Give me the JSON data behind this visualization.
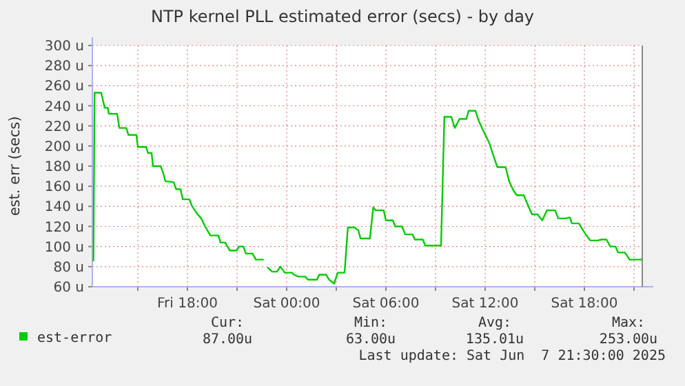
{
  "chart_data": {
    "type": "line",
    "title": "NTP kernel PLL estimated error (secs) - by day",
    "ylabel": "est. err (secs)",
    "xlim": [
      "2025-06-06T12:15",
      "2025-06-07T21:30"
    ],
    "ylim": [
      60,
      300
    ],
    "xticks": [
      {
        "value": "2025-06-06T15:00",
        "label": null
      },
      {
        "value": "2025-06-06T18:00",
        "label": "Fri 18:00"
      },
      {
        "value": "2025-06-06T21:00",
        "label": null
      },
      {
        "value": "2025-06-07T00:00",
        "label": "Sat 00:00"
      },
      {
        "value": "2025-06-07T03:00",
        "label": null
      },
      {
        "value": "2025-06-07T06:00",
        "label": "Sat 06:00"
      },
      {
        "value": "2025-06-07T09:00",
        "label": null
      },
      {
        "value": "2025-06-07T12:00",
        "label": "Sat 12:00"
      },
      {
        "value": "2025-06-07T15:00",
        "label": null
      },
      {
        "value": "2025-06-07T18:00",
        "label": "Sat 18:00"
      },
      {
        "value": "2025-06-07T21:00",
        "label": null
      }
    ],
    "yticks": [
      {
        "value": 60,
        "label": "60 u"
      },
      {
        "value": 80,
        "label": "80 u"
      },
      {
        "value": 100,
        "label": "100 u"
      },
      {
        "value": 120,
        "label": "120 u"
      },
      {
        "value": 140,
        "label": "140 u"
      },
      {
        "value": 160,
        "label": "160 u"
      },
      {
        "value": 180,
        "label": "180 u"
      },
      {
        "value": 200,
        "label": "200 u"
      },
      {
        "value": 220,
        "label": "220 u"
      },
      {
        "value": 240,
        "label": "240 u"
      },
      {
        "value": 260,
        "label": "260 u"
      },
      {
        "value": 280,
        "label": "280 u"
      },
      {
        "value": 300,
        "label": "300 u"
      }
    ],
    "grid": true,
    "legend": "bottom left",
    "series": [
      {
        "name": "est-error",
        "color": "#00cc00",
        "x": [
          "2025-06-06T12:19",
          "2025-06-06T12:23",
          "2025-06-06T12:47",
          "2025-06-06T13:00",
          "2025-06-06T13:11",
          "2025-06-06T13:15",
          "2025-06-06T13:45",
          "2025-06-06T13:53",
          "2025-06-06T14:18",
          "2025-06-06T14:26",
          "2025-06-06T14:55",
          "2025-06-06T15:00",
          "2025-06-06T15:30",
          "2025-06-06T15:37",
          "2025-06-06T15:50",
          "2025-06-06T15:55",
          "2025-06-06T16:23",
          "2025-06-06T16:32",
          "2025-06-06T16:40",
          "2025-06-06T17:10",
          "2025-06-06T17:19",
          "2025-06-06T17:35",
          "2025-06-06T17:43",
          "2025-06-06T18:07",
          "2025-06-06T18:17",
          "2025-06-06T18:34",
          "2025-06-06T18:50",
          "2025-06-06T19:04",
          "2025-06-06T19:23",
          "2025-06-06T19:52",
          "2025-06-06T20:00",
          "2025-06-06T20:17",
          "2025-06-06T20:25",
          "2025-06-06T20:34",
          "2025-06-06T20:58",
          "2025-06-06T21:07",
          "2025-06-06T21:23",
          "2025-06-06T21:32",
          "2025-06-06T21:56",
          "2025-06-06T22:08",
          "2025-06-06T22:34",
          "2025-06-06T22:48",
          "2025-06-06T22:52",
          "2025-06-06T23:07",
          "2025-06-06T23:25",
          "2025-06-06T23:37",
          "2025-06-06T23:53",
          "2025-06-07T00:19",
          "2025-06-07T00:26",
          "2025-06-07T00:43",
          "2025-06-07T01:08",
          "2025-06-07T01:17",
          "2025-06-07T01:50",
          "2025-06-07T01:58",
          "2025-06-07T02:23",
          "2025-06-07T02:34",
          "2025-06-07T02:52",
          "2025-06-07T03:05",
          "2025-06-07T03:30",
          "2025-06-07T03:42",
          "2025-06-07T04:07",
          "2025-06-07T04:20",
          "2025-06-07T04:28",
          "2025-06-07T05:02",
          "2025-06-07T05:14",
          "2025-06-07T05:23",
          "2025-06-07T05:52",
          "2025-06-07T06:00",
          "2025-06-07T06:25",
          "2025-06-07T06:34",
          "2025-06-07T06:58",
          "2025-06-07T07:10",
          "2025-06-07T07:37",
          "2025-06-07T07:45",
          "2025-06-07T08:14",
          "2025-06-07T08:22",
          "2025-06-07T09:20",
          "2025-06-07T09:32",
          "2025-06-07T09:57",
          "2025-06-07T10:10",
          "2025-06-07T10:27",
          "2025-06-07T10:52",
          "2025-06-07T11:00",
          "2025-06-07T11:25",
          "2025-06-07T11:37",
          "2025-06-07T11:50",
          "2025-06-07T12:15",
          "2025-06-07T12:27",
          "2025-06-07T12:44",
          "2025-06-07T13:14",
          "2025-06-07T13:27",
          "2025-06-07T13:42",
          "2025-06-07T13:55",
          "2025-06-07T14:20",
          "2025-06-07T14:34",
          "2025-06-07T14:50",
          "2025-06-07T15:10",
          "2025-06-07T15:27",
          "2025-06-07T15:44",
          "2025-06-07T16:14",
          "2025-06-07T16:25",
          "2025-06-07T16:50",
          "2025-06-07T17:07",
          "2025-06-07T17:15",
          "2025-06-07T17:40",
          "2025-06-07T17:53",
          "2025-06-07T18:05",
          "2025-06-07T18:22",
          "2025-06-07T18:47",
          "2025-06-07T19:04",
          "2025-06-07T19:20",
          "2025-06-07T19:34",
          "2025-06-07T19:53",
          "2025-06-07T20:02",
          "2025-06-07T20:27",
          "2025-06-07T20:44",
          "2025-06-07T21:30"
        ],
        "values": [
          86,
          253,
          253,
          238,
          238,
          232,
          232,
          218,
          218,
          211,
          211,
          199,
          199,
          193,
          193,
          180,
          180,
          173,
          165,
          164,
          157,
          157,
          147,
          147,
          140,
          133,
          128,
          120,
          111,
          111,
          104,
          104,
          100,
          96,
          96,
          100,
          100,
          93,
          93,
          87,
          87,
          null,
          79,
          75,
          75,
          80,
          74,
          74,
          72,
          70,
          70,
          67,
          67,
          72,
          72,
          67,
          63,
          74,
          74,
          119,
          119,
          116,
          108,
          108,
          139,
          136,
          136,
          126,
          126,
          120,
          120,
          112,
          112,
          107,
          107,
          101,
          101,
          229,
          229,
          218,
          227,
          227,
          235,
          235,
          225,
          217,
          203,
          193,
          179,
          179,
          165,
          156,
          151,
          151,
          142,
          132,
          132,
          126,
          136,
          136,
          128,
          128,
          129,
          123,
          123,
          117,
          112,
          106,
          106,
          107,
          107,
          100,
          100,
          94,
          94,
          87,
          87
        ]
      }
    ],
    "annotations": [
      "Cur:",
      "87.00u",
      "Min:",
      "63.00u",
      "Avg:",
      "135.01u",
      "Max:",
      "253.00u",
      "Last update: Sat Jun  7 21:30:00 2025"
    ]
  }
}
